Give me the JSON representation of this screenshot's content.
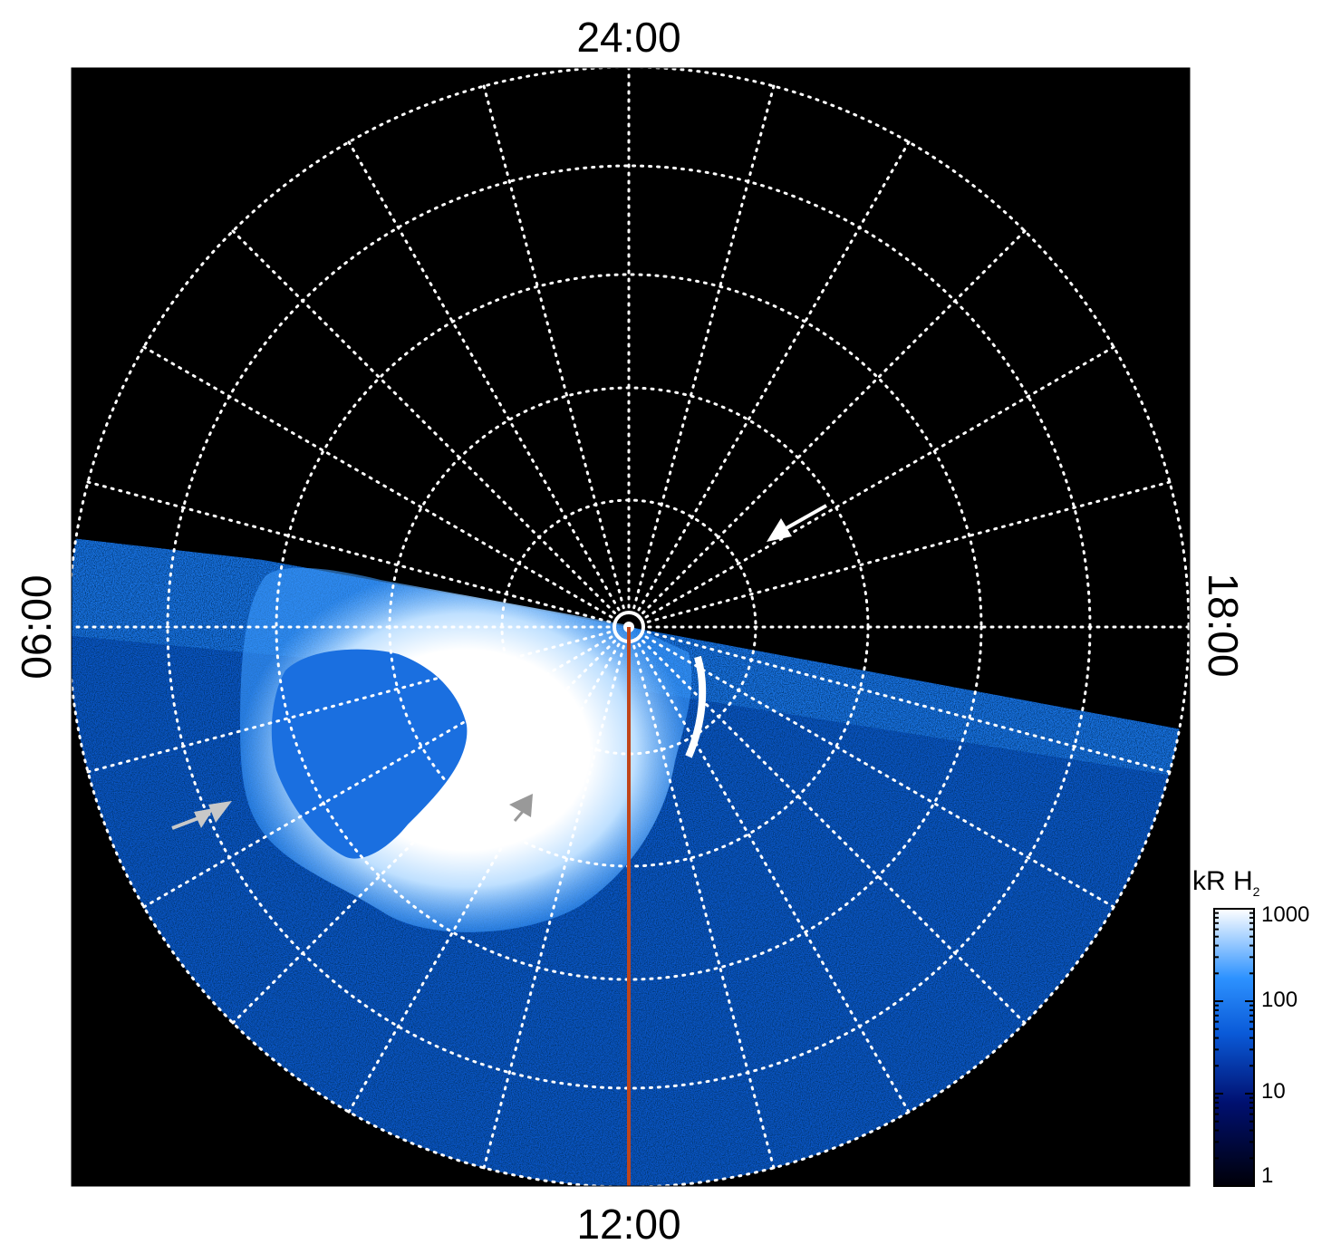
{
  "labels": {
    "top": "24:00",
    "bottom": "12:00",
    "left": "06:00",
    "right": "18:00"
  },
  "colorbar": {
    "title_main": "kR H",
    "title_sub": "2",
    "ticks": [
      "1000",
      "100",
      "10",
      "1"
    ],
    "scale": "log",
    "range": [
      1,
      1000
    ]
  },
  "colors": {
    "background": "#000000",
    "grid": "#ffffff",
    "meridian_line": "#c0451a",
    "colormap_low": "#000010",
    "colormap_mid": "#0a72e8",
    "colormap_high": "#ffffff"
  },
  "annotations": {
    "arrows": [
      "white-arrow",
      "gray-arrow-left",
      "gray-arrow-center"
    ]
  }
}
